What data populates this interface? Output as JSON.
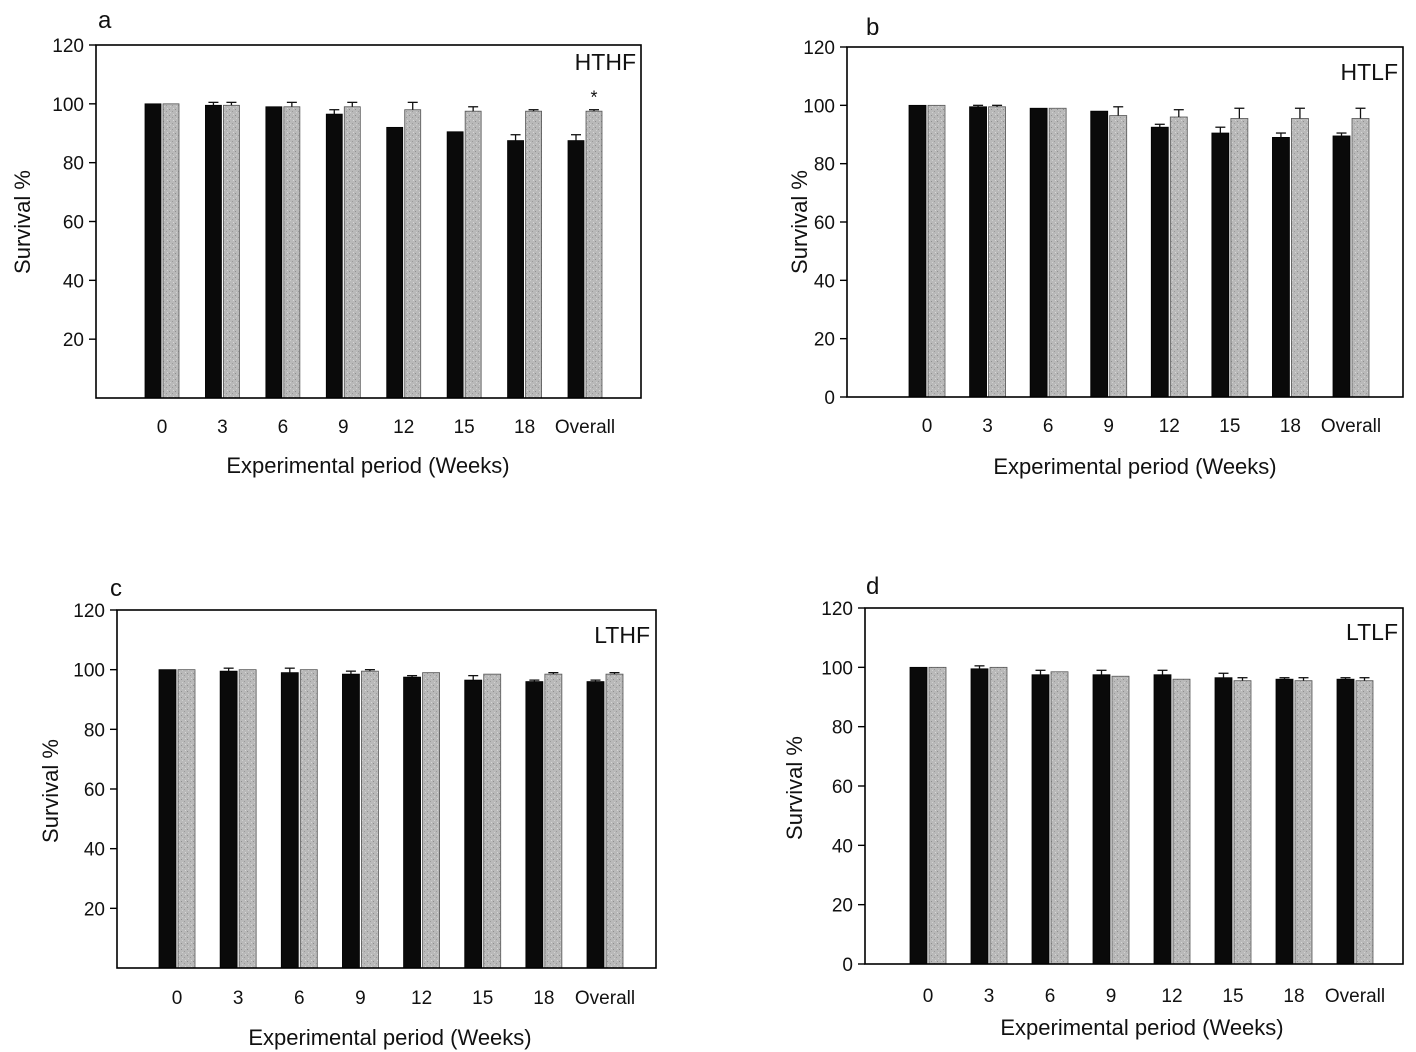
{
  "chart_data": [
    {
      "type": "bar",
      "panel_letter": "a",
      "label": "HTHF",
      "categories": [
        "0",
        "3",
        "6",
        "9",
        "12",
        "15",
        "18",
        "Overall"
      ],
      "series": [
        {
          "color": "#0a0a0a",
          "values": [
            100,
            99.5,
            99,
            96.5,
            92,
            90.5,
            87.5,
            87.5
          ],
          "errors": [
            0,
            1,
            0,
            1.5,
            0,
            0,
            2,
            2
          ]
        },
        {
          "color": "#b5b5b5",
          "values": [
            100,
            99.5,
            99,
            99,
            98,
            97.5,
            97.5,
            97.5
          ],
          "errors": [
            0,
            1,
            1.5,
            1.5,
            2.5,
            1.5,
            0.5,
            0.5
          ]
        }
      ],
      "yticks": [
        20,
        40,
        60,
        80,
        100,
        120
      ],
      "ylim": [
        0,
        120
      ],
      "xlabel": "Experimental period (Weeks)",
      "ylabel": "Survival %",
      "annotations": [
        {
          "category": "Overall",
          "series": 1,
          "text": "*"
        }
      ]
    },
    {
      "type": "bar",
      "panel_letter": "b",
      "label": "HTLF",
      "categories": [
        "0",
        "3",
        "6",
        "9",
        "12",
        "15",
        "18",
        "Overall"
      ],
      "series": [
        {
          "color": "#0a0a0a",
          "values": [
            100,
            99.5,
            99,
            98,
            92.5,
            90.5,
            89,
            89.5
          ],
          "errors": [
            0,
            0.5,
            0,
            0,
            1,
            2,
            1.5,
            1
          ]
        },
        {
          "color": "#b5b5b5",
          "values": [
            100,
            99.5,
            99,
            96.5,
            96,
            95.5,
            95.5,
            95.5
          ],
          "errors": [
            0,
            0.5,
            0,
            3,
            2.5,
            3.5,
            3.5,
            3.5
          ]
        }
      ],
      "yticks": [
        0,
        20,
        40,
        60,
        80,
        100,
        120
      ],
      "ylim": [
        0,
        120
      ],
      "xlabel": "Experimental period (Weeks)",
      "ylabel": "Survival %",
      "annotations": []
    },
    {
      "type": "bar",
      "panel_letter": "c",
      "label": "LTHF",
      "categories": [
        "0",
        "3",
        "6",
        "9",
        "12",
        "15",
        "18",
        "Overall"
      ],
      "series": [
        {
          "color": "#0a0a0a",
          "values": [
            100,
            99.5,
            99,
            98.5,
            97.5,
            96.5,
            96,
            96
          ],
          "errors": [
            0,
            1,
            1.5,
            1,
            0.5,
            1.5,
            0.5,
            0.5
          ]
        },
        {
          "color": "#b5b5b5",
          "values": [
            100,
            100,
            100,
            99.5,
            99,
            98.5,
            98.5,
            98.5
          ],
          "errors": [
            0,
            0,
            0,
            0.5,
            0,
            0,
            0.5,
            0.5
          ]
        }
      ],
      "yticks": [
        20,
        40,
        60,
        80,
        100,
        120
      ],
      "ylim": [
        0,
        120
      ],
      "xlabel": "Experimental period (Weeks)",
      "ylabel": "Survival %",
      "annotations": []
    },
    {
      "type": "bar",
      "panel_letter": "d",
      "label": "LTLF",
      "categories": [
        "0",
        "3",
        "6",
        "9",
        "12",
        "15",
        "18",
        "Overall"
      ],
      "series": [
        {
          "color": "#0a0a0a",
          "values": [
            100,
            99.5,
            97.5,
            97.5,
            97.5,
            96.5,
            96,
            96
          ],
          "errors": [
            0,
            1,
            1.5,
            1.5,
            1.5,
            1.5,
            0.5,
            0.5
          ]
        },
        {
          "color": "#b5b5b5",
          "values": [
            100,
            100,
            98.5,
            97,
            96,
            95.5,
            95.5,
            95.5
          ],
          "errors": [
            0,
            0,
            0,
            0,
            0,
            1,
            1,
            1
          ]
        }
      ],
      "yticks": [
        0,
        20,
        40,
        60,
        80,
        100,
        120
      ],
      "ylim": [
        0,
        120
      ],
      "xlabel": "Experimental period (Weeks)",
      "ylabel": "Survival %",
      "annotations": []
    }
  ]
}
